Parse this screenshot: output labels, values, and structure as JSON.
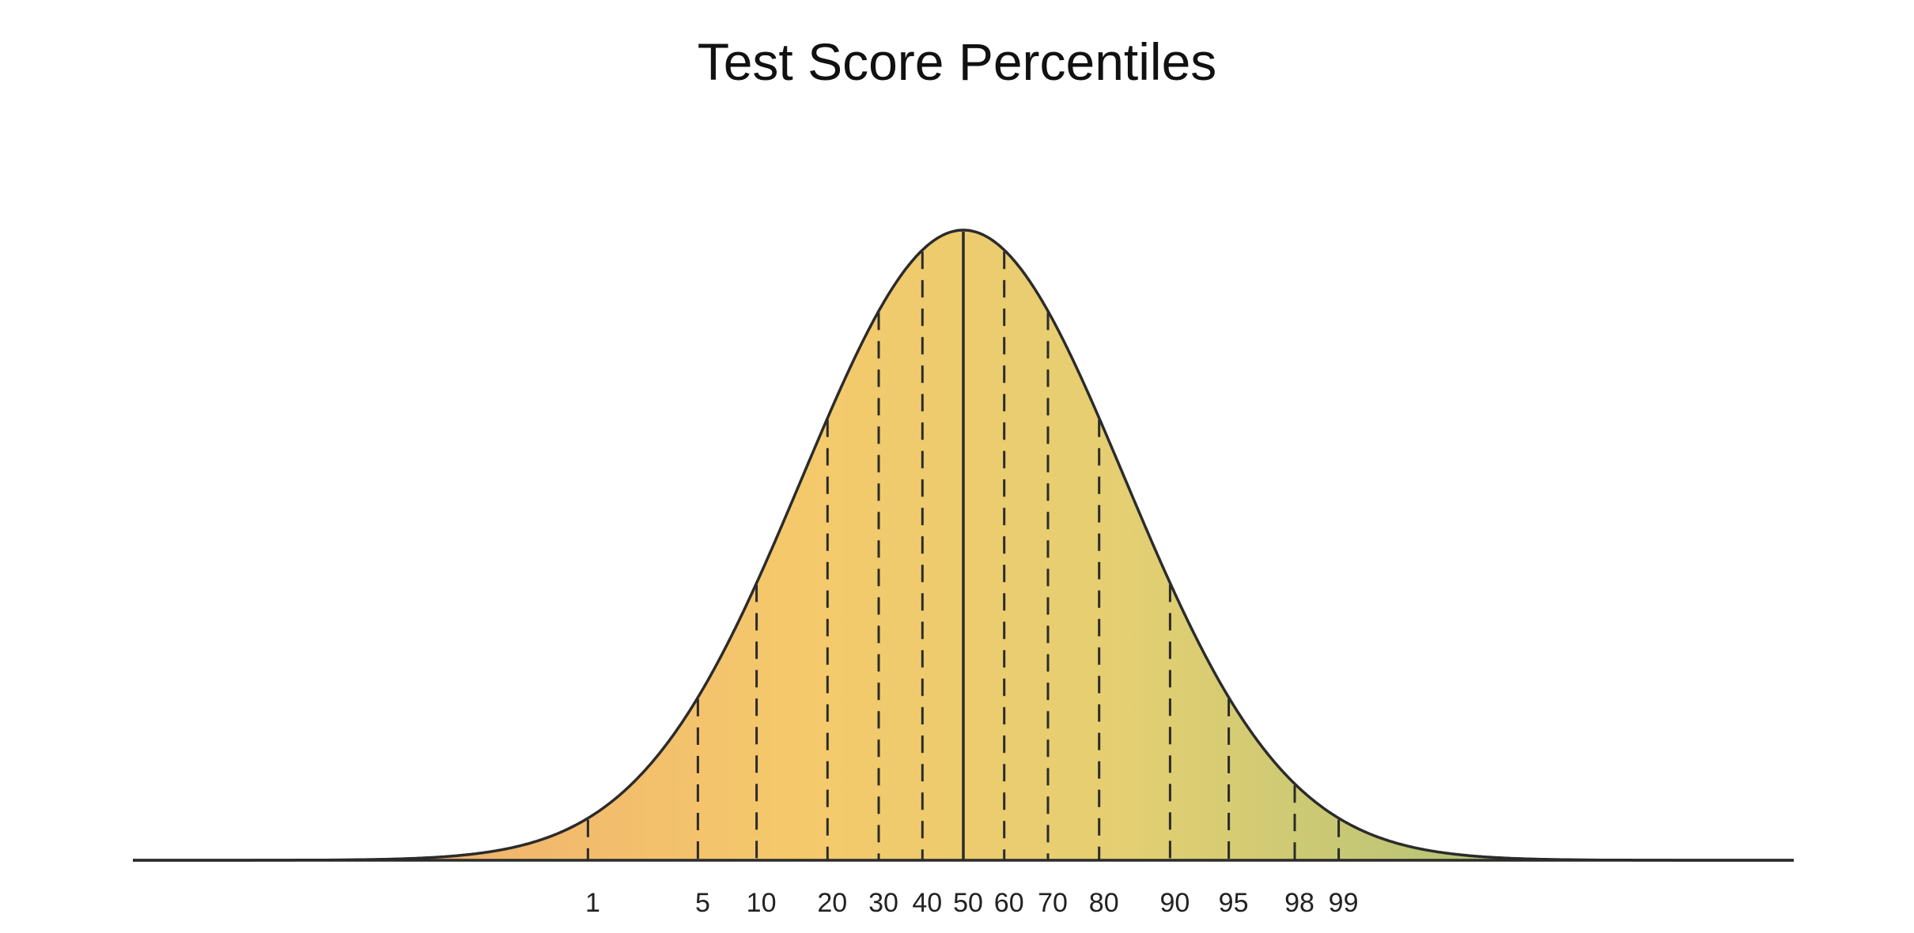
{
  "chart_data": {
    "type": "area",
    "title": "Test Score Percentiles",
    "xlabel": "",
    "ylabel": "",
    "distribution": "normal",
    "percentiles": [
      1,
      5,
      10,
      20,
      30,
      40,
      50,
      60,
      70,
      80,
      90,
      95,
      98,
      99
    ],
    "tick_labels": [
      "1",
      "5",
      "10",
      "20",
      "30",
      "40",
      "50",
      "60",
      "70",
      "80",
      "90",
      "95",
      "98",
      "99"
    ],
    "median_percentile": 50,
    "gradient_colors": [
      "#e67d62",
      "#f0b46e",
      "#f5c96b",
      "#e4cf72",
      "#b8c476",
      "#82b46c"
    ],
    "curve_color": "#2b2b2b",
    "grid": false,
    "legend": "none"
  }
}
